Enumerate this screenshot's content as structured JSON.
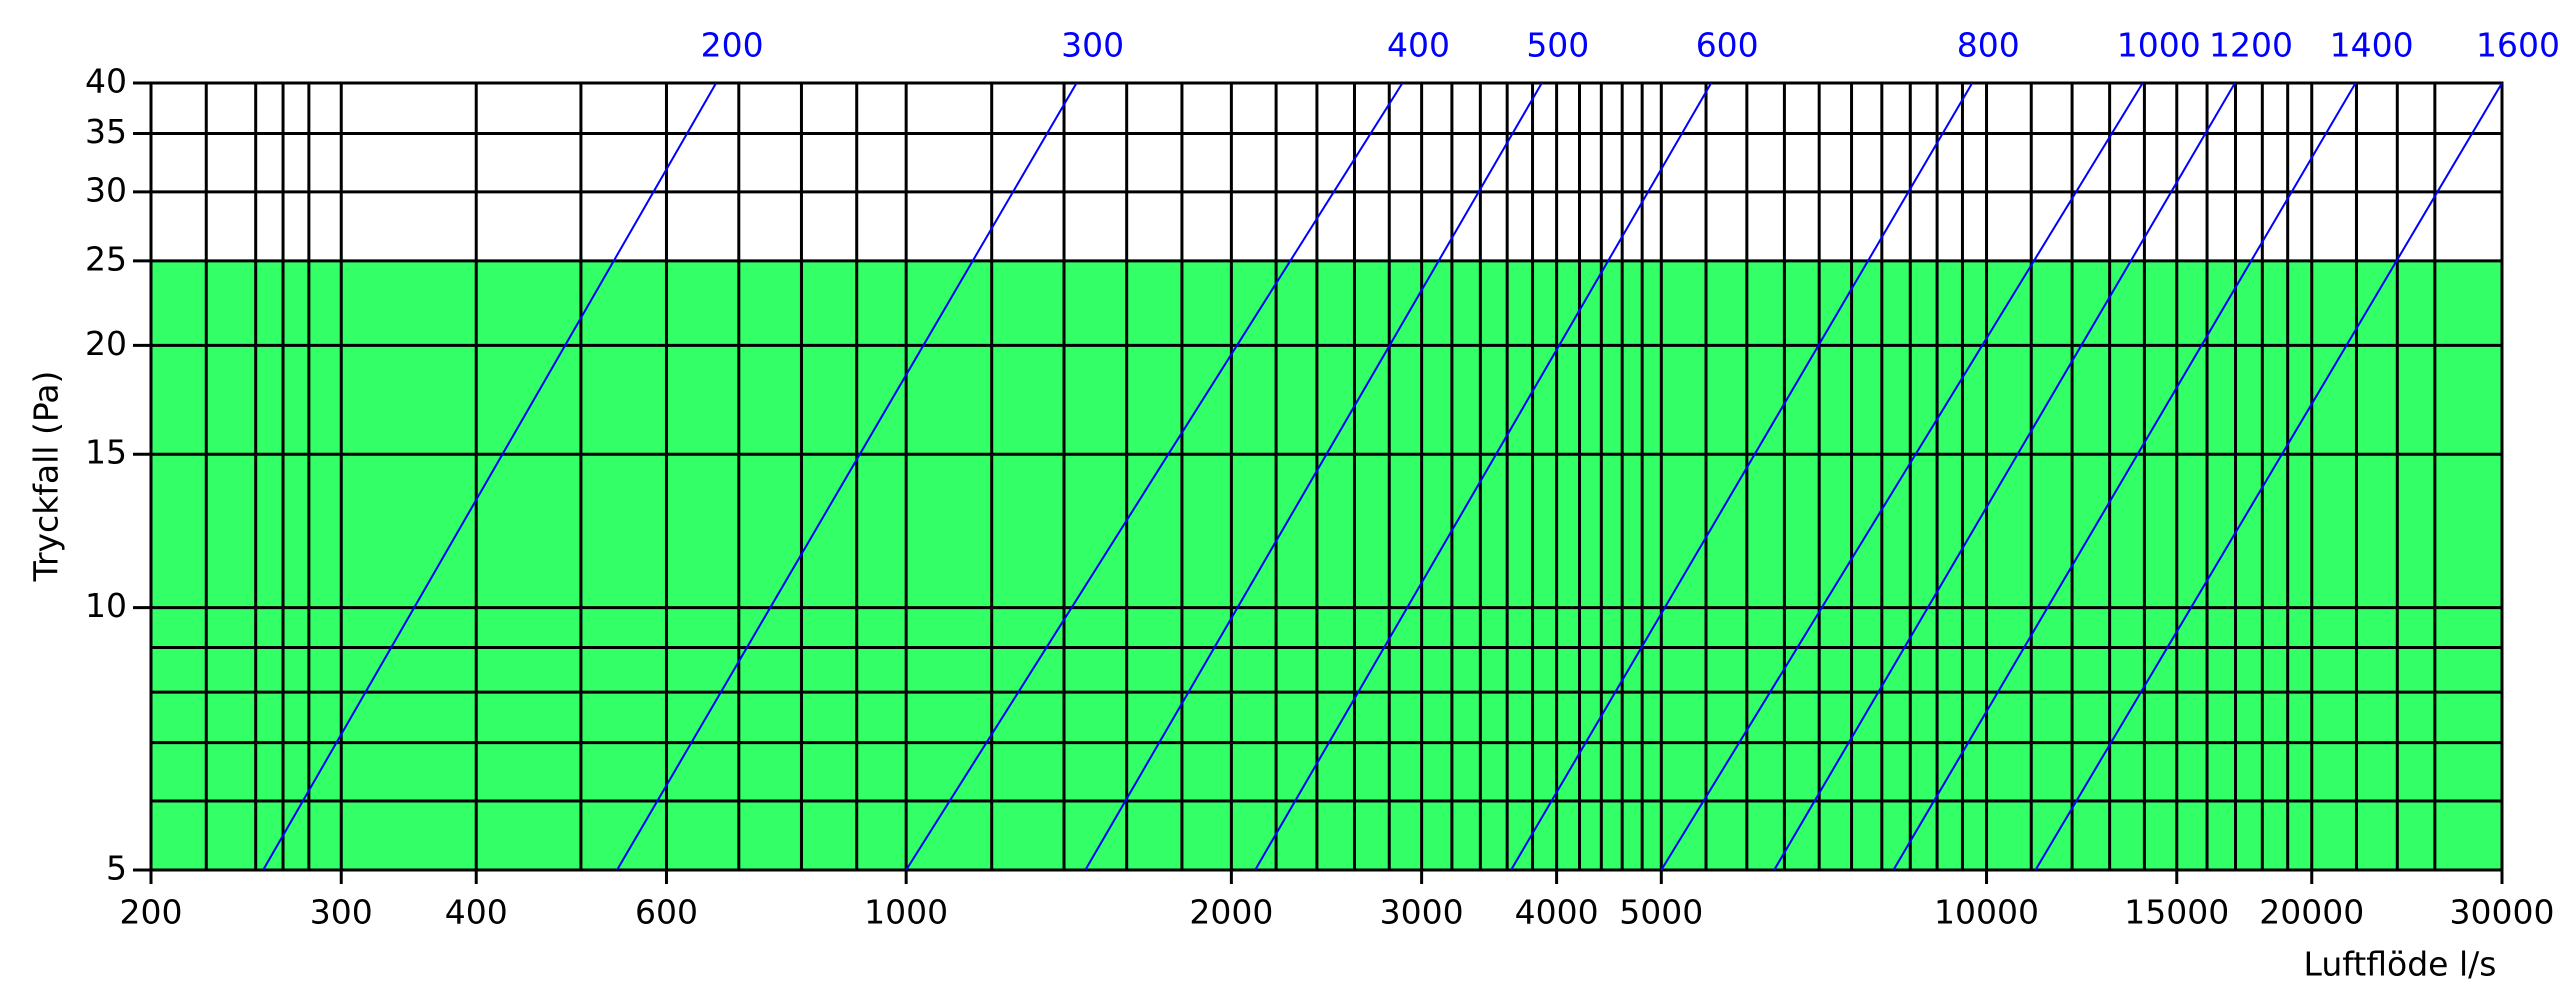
{
  "chart_data": {
    "type": "line",
    "xlabel": "Luftflöde l/s",
    "ylabel": "Tryckfall (Pa)",
    "xscale": "log",
    "yscale": "log",
    "xlim": [
      200,
      30000
    ],
    "ylim": [
      5,
      40
    ],
    "xticks": [
      200,
      300,
      400,
      600,
      1000,
      2000,
      3000,
      4000,
      5000,
      10000,
      15000,
      20000,
      30000
    ],
    "yticks": [
      5,
      10,
      15,
      20,
      25,
      30,
      35,
      40
    ],
    "x_minor_grid": [
      225,
      250,
      265,
      280,
      500,
      700,
      800,
      900,
      1200,
      1400,
      1600,
      1800,
      2200,
      2400,
      2600,
      2800,
      3200,
      3400,
      3600,
      3800,
      4200,
      4400,
      4600,
      4800,
      5500,
      6000,
      6500,
      7000,
      7500,
      8000,
      8500,
      9000,
      9500,
      11000,
      12000,
      13000,
      14000,
      16000,
      17000,
      18000,
      19000,
      22000,
      24000,
      26000
    ],
    "y_minor_grid": [
      6,
      7,
      8,
      9
    ],
    "grid": true,
    "grid_color": "#000000",
    "shaded_band": {
      "ylim": [
        5,
        25
      ],
      "color": "#33ff66"
    },
    "series": [
      {
        "name": "200",
        "color": "#0000ff",
        "x": [
          254,
          667
        ],
        "values": [
          5,
          40
        ]
      },
      {
        "name": "300",
        "color": "#0000ff",
        "x": [
          540,
          1438
        ],
        "values": [
          5,
          40
        ]
      },
      {
        "name": "400",
        "color": "#0000ff",
        "x": [
          1000,
          2880
        ],
        "values": [
          5,
          40
        ]
      },
      {
        "name": "500",
        "color": "#0000ff",
        "x": [
          1465,
          3876
        ],
        "values": [
          5,
          40
        ]
      },
      {
        "name": "600",
        "color": "#0000ff",
        "x": [
          2104,
          5561
        ],
        "values": [
          5,
          40
        ]
      },
      {
        "name": "800",
        "color": "#0000ff",
        "x": [
          3630,
          9700
        ],
        "values": [
          5,
          40
        ]
      },
      {
        "name": "1000",
        "color": "#0000ff",
        "x": [
          5000,
          13950
        ],
        "values": [
          5,
          40
        ]
      },
      {
        "name": "1200",
        "color": "#0000ff",
        "x": [
          6360,
          16980
        ],
        "values": [
          5,
          40
        ]
      },
      {
        "name": "1400",
        "color": "#0000ff",
        "x": [
          8200,
          21960
        ],
        "values": [
          5,
          40
        ]
      },
      {
        "name": "1600",
        "color": "#0000ff",
        "x": [
          11100,
          30000
        ],
        "values": [
          5,
          40
        ]
      }
    ]
  }
}
